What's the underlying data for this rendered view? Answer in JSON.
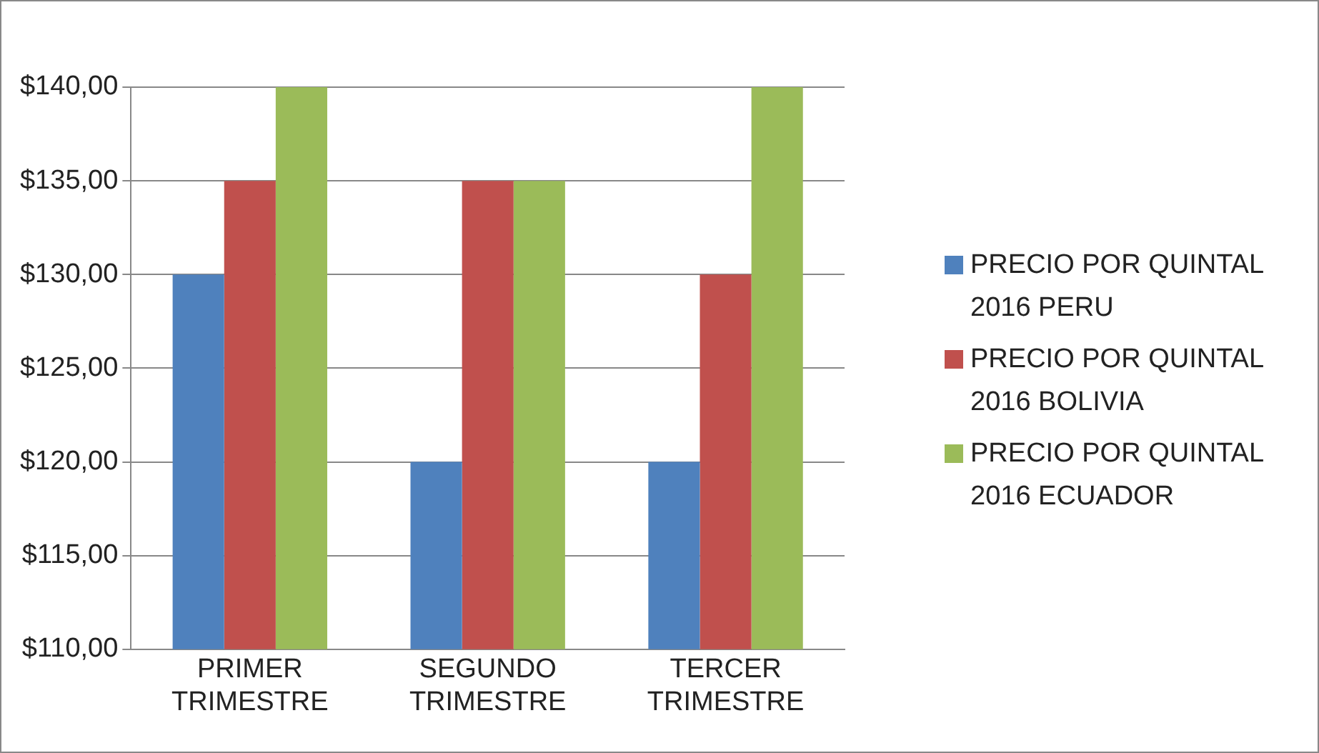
{
  "chart_data": {
    "type": "bar",
    "categories": [
      "PRIMER TRIMESTRE",
      "SEGUNDO TRIMESTRE",
      "TERCER TRIMESTRE"
    ],
    "series": [
      {
        "name": "PRECIO POR QUINTAL 2016 PERU",
        "color": "#4f81bd",
        "values": [
          130,
          120,
          120
        ]
      },
      {
        "name": "PRECIO POR QUINTAL 2016 BOLIVIA",
        "color": "#c0504d",
        "values": [
          135,
          135,
          130
        ]
      },
      {
        "name": "PRECIO POR QUINTAL 2016 ECUADOR",
        "color": "#9bbb59",
        "values": [
          140,
          135,
          140
        ]
      }
    ],
    "ylim": [
      110,
      140
    ],
    "yticks": [
      {
        "value": 110,
        "label": "$110,00"
      },
      {
        "value": 115,
        "label": "$115,00"
      },
      {
        "value": 120,
        "label": "$120,00"
      },
      {
        "value": 125,
        "label": "$125,00"
      },
      {
        "value": 130,
        "label": "$130,00"
      },
      {
        "value": 135,
        "label": "$135,00"
      },
      {
        "value": 140,
        "label": "$140,00"
      }
    ],
    "grid": "y",
    "legend": "right"
  }
}
